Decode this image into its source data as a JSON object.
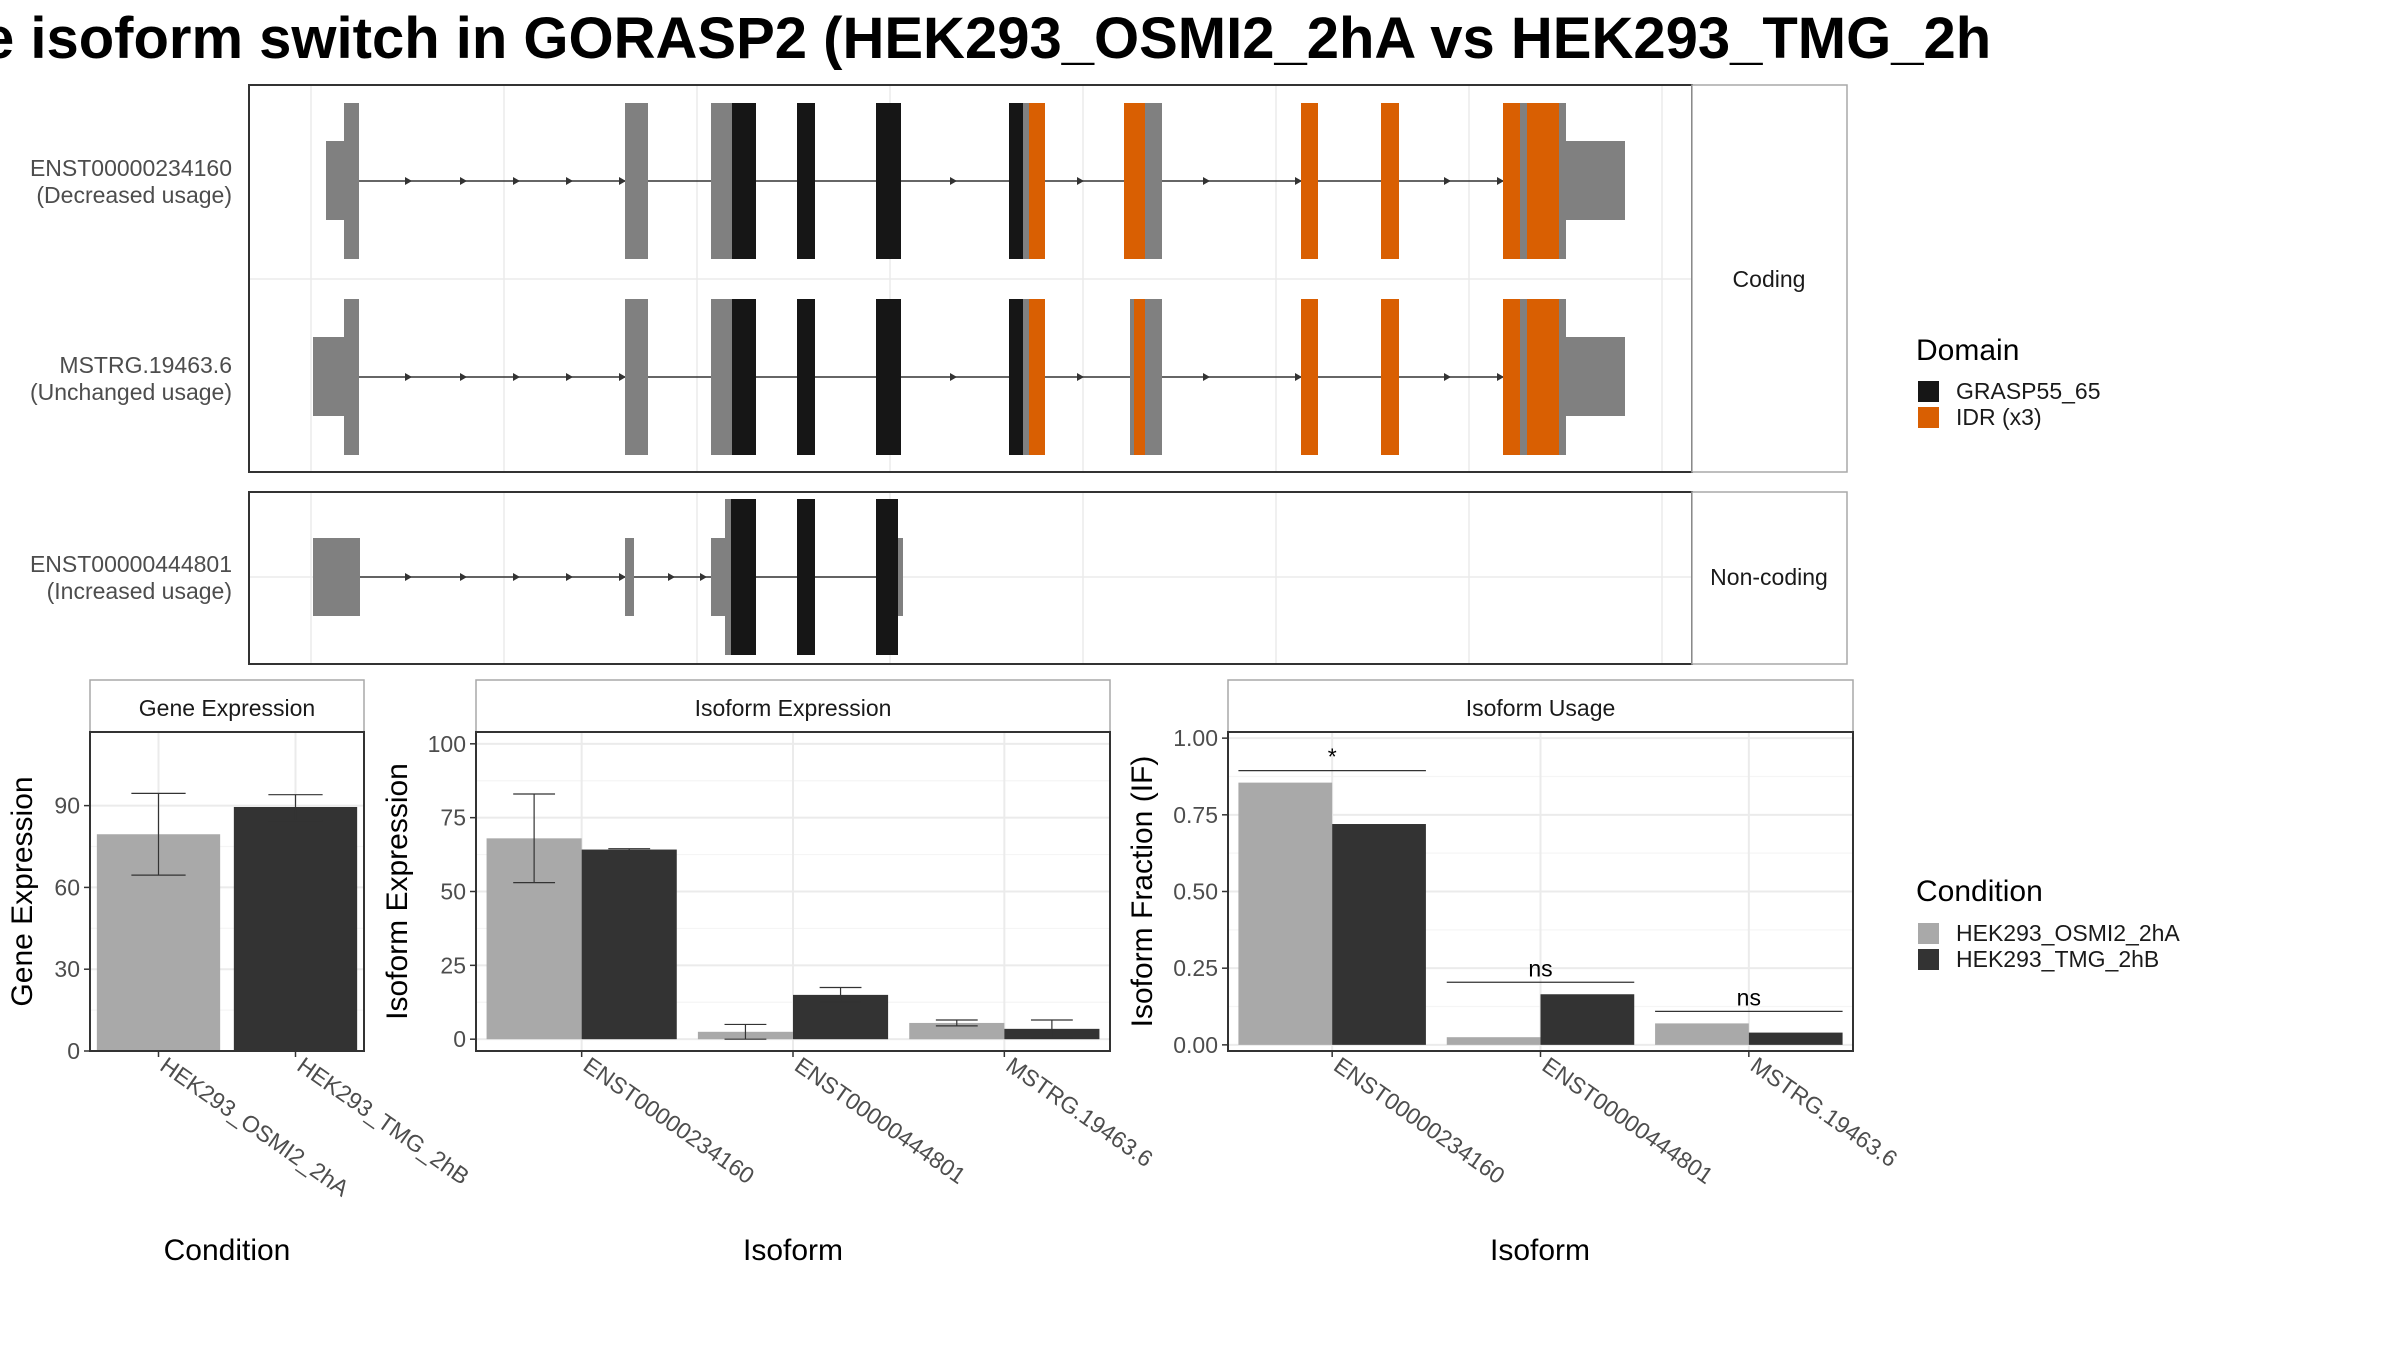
{
  "title": "e isoform switch in GORASP2 (HEK293_OSMI2_2hA vs HEK293_TMG_2h",
  "colors": {
    "exon": "#808080",
    "domain": "#161616",
    "idr": "#d95f02",
    "cond_a": "#a9a9a9",
    "cond_b": "#333333",
    "grid": "#ebebeb",
    "border": "#333333",
    "strip_border": "#a8a8a8"
  },
  "transcript_panels": [
    {
      "strip": "Coding",
      "transcripts": [
        {
          "id": "ENST00000234160",
          "note": "(Decreased usage)"
        },
        {
          "id": "MSTRG.19463.6",
          "note": "(Unchanged usage)"
        }
      ]
    },
    {
      "strip": "Non-coding",
      "transcripts": [
        {
          "id": "ENST00000444801",
          "note": "(Increased usage)"
        }
      ]
    }
  ],
  "domain_legend": {
    "title": "Domain",
    "items": [
      {
        "label": "GRASP55_65",
        "color": "#161616"
      },
      {
        "label": "IDR (x3)",
        "color": "#d95f02"
      }
    ]
  },
  "condition_legend": {
    "title": "Condition",
    "items": [
      {
        "label": "HEK293_OSMI2_2hA",
        "color": "#a9a9a9"
      },
      {
        "label": "HEK293_TMG_2hB",
        "color": "#333333"
      }
    ]
  },
  "chart_data": [
    {
      "type": "bar",
      "panel": "Gene Expression",
      "xlabel": "Condition",
      "ylabel": "Gene Expression",
      "categories": [
        "HEK293_OSMI2_2hA",
        "HEK293_TMG_2hB"
      ],
      "values": [
        79.5,
        89.5
      ],
      "error_low": [
        64.5,
        84.5
      ],
      "error_high": [
        94.5,
        94.0
      ],
      "ylim": [
        0,
        117
      ],
      "yticks": [
        0,
        30,
        60,
        90
      ],
      "grid": true
    },
    {
      "type": "bar",
      "panel": "Isoform Expression",
      "xlabel": "Isoform",
      "ylabel": "Isoform Expression",
      "categories": [
        "ENST00000234160",
        "ENST00000444801",
        "MSTRG.19463.6"
      ],
      "series": [
        {
          "name": "HEK293_OSMI2_2hA",
          "values": [
            68.0,
            2.5,
            5.5
          ],
          "error_low": [
            53.0,
            0.0,
            4.5
          ],
          "error_high": [
            83.0,
            5.0,
            6.5
          ]
        },
        {
          "name": "HEK293_TMG_2hB",
          "values": [
            64.2,
            15.0,
            3.5
          ],
          "error_low": [
            63.9,
            12.5,
            0.5
          ],
          "error_high": [
            64.5,
            17.5,
            6.5
          ]
        }
      ],
      "ylim": [
        -4,
        104
      ],
      "yticks": [
        0,
        25,
        50,
        75,
        100
      ],
      "grid": true
    },
    {
      "type": "bar",
      "panel": "Isoform Usage",
      "xlabel": "Isoform",
      "ylabel": "Isoform Fraction (IF)",
      "categories": [
        "ENST00000234160",
        "ENST00000444801",
        "MSTRG.19463.6"
      ],
      "series": [
        {
          "name": "HEK293_OSMI2_2hA",
          "values": [
            0.855,
            0.025,
            0.07
          ]
        },
        {
          "name": "HEK293_TMG_2hB",
          "values": [
            0.72,
            0.165,
            0.04
          ]
        }
      ],
      "significance": [
        "*",
        "ns",
        "ns"
      ],
      "ylim": [
        -0.02,
        1.02
      ],
      "yticks": [
        "0.00",
        "0.25",
        "0.50",
        "0.75",
        "1.00"
      ],
      "grid": true
    }
  ]
}
